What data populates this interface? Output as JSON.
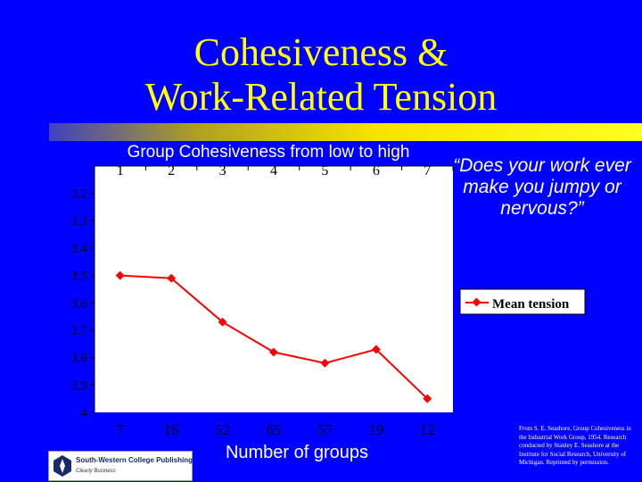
{
  "slide": {
    "title_line1": "Cohesiveness &",
    "title_line2": "Work-Related Tension",
    "note": "“Does your work ever make you jumpy or nervous?”",
    "credit": "From S. E. Seashore, Group Cohesiveness in the Industrial Work Group, 1954. Research conducted by Stanley E. Seashore at the Institute for Social Research, University of Michigan. Reprinted by permission.",
    "logo_name": "South-Western College Publishing",
    "logo_tagline": "Clearly Business"
  },
  "colors": {
    "background": "#0000ff",
    "title": "#ffff00",
    "plot": "#ffffff",
    "series": "#ff0000"
  },
  "chart_data": {
    "type": "line",
    "title": "",
    "top_axis_label": "Group Cohesiveness from low to high",
    "bottom_axis_label": "Number of  groups",
    "categories": [
      "1",
      "2",
      "3",
      "4",
      "5",
      "6",
      "7"
    ],
    "group_counts": [
      "7",
      "16",
      "52",
      "65",
      "57",
      "19",
      "12"
    ],
    "y_ticks": [
      "3.2",
      "3.3",
      "3.4",
      "3.5",
      "3.6",
      "3.7",
      "3.8",
      "3.9",
      "4"
    ],
    "ylim": [
      3.1,
      4.0
    ],
    "y_reversed": true,
    "grid": false,
    "legend_position": "right",
    "series": [
      {
        "name": "Mean tension",
        "values": [
          3.5,
          3.51,
          3.67,
          3.78,
          3.82,
          3.77,
          3.95
        ]
      }
    ]
  }
}
